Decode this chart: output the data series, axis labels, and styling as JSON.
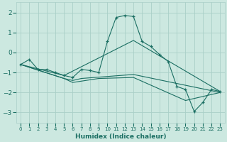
{
  "xlabel": "Humidex (Indice chaleur)",
  "bg_color": "#cce8e0",
  "grid_color": "#aacfc8",
  "line_color": "#1a6e62",
  "xlim": [
    -0.5,
    23.5
  ],
  "ylim": [
    -3.5,
    2.5
  ],
  "yticks": [
    -3,
    -2,
    -1,
    0,
    1,
    2
  ],
  "xticks": [
    0,
    1,
    2,
    3,
    4,
    5,
    6,
    7,
    8,
    9,
    10,
    11,
    12,
    13,
    14,
    15,
    16,
    17,
    18,
    19,
    20,
    21,
    22,
    23
  ],
  "series": [
    [
      0,
      -0.6
    ],
    [
      1,
      -0.35
    ],
    [
      2,
      -0.85
    ],
    [
      3,
      -0.85
    ],
    [
      4,
      -1.0
    ],
    [
      5,
      -1.15
    ],
    [
      6,
      -1.25
    ],
    [
      7,
      -0.85
    ],
    [
      8,
      -0.9
    ],
    [
      9,
      -1.0
    ],
    [
      10,
      0.55
    ],
    [
      11,
      1.75
    ],
    [
      12,
      1.85
    ],
    [
      13,
      1.8
    ],
    [
      14,
      0.55
    ],
    [
      15,
      0.3
    ],
    [
      16,
      -0.1
    ],
    [
      17,
      -0.45
    ],
    [
      18,
      -1.7
    ],
    [
      19,
      -1.85
    ],
    [
      20,
      -2.95
    ],
    [
      21,
      -2.5
    ],
    [
      22,
      -1.85
    ],
    [
      23,
      -1.95
    ]
  ],
  "series2": [
    [
      0,
      -0.6
    ],
    [
      5,
      -1.15
    ],
    [
      13,
      0.6
    ],
    [
      23,
      -1.95
    ]
  ],
  "series3": [
    [
      0,
      -0.6
    ],
    [
      5,
      -1.3
    ],
    [
      6,
      -1.4
    ],
    [
      7,
      -1.3
    ],
    [
      13,
      -1.1
    ],
    [
      23,
      -2.0
    ]
  ],
  "series4": [
    [
      0,
      -0.6
    ],
    [
      5,
      -1.3
    ],
    [
      6,
      -1.5
    ],
    [
      9,
      -1.3
    ],
    [
      13,
      -1.25
    ],
    [
      19,
      -2.4
    ],
    [
      23,
      -2.0
    ]
  ]
}
